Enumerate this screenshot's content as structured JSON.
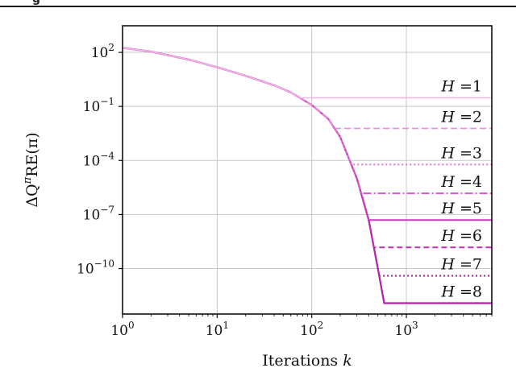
{
  "header_fragment": "g",
  "chart_data": {
    "type": "line",
    "xlabel": "Iterations k",
    "ylabel": "ΔQ^πRE(π)",
    "xscale": "log",
    "yscale": "log",
    "xlim": [
      1,
      8000
    ],
    "ylim": [
      3e-13,
      3000
    ],
    "x_ticks": [
      {
        "value": 1,
        "label": "10^0"
      },
      {
        "value": 10,
        "label": "10^1"
      },
      {
        "value": 100,
        "label": "10^2"
      },
      {
        "value": 1000,
        "label": "10^3"
      }
    ],
    "y_ticks": [
      {
        "value": 100,
        "label": "10^2"
      },
      {
        "value": 0.1,
        "label": "10^-1"
      },
      {
        "value": 0.0001,
        "label": "10^-4"
      },
      {
        "value": 1e-07,
        "label": "10^-7"
      },
      {
        "value": 1e-10,
        "label": "10^-10"
      }
    ],
    "grid": true,
    "common_decay": [
      [
        1,
        180
      ],
      [
        2,
        110
      ],
      [
        5,
        40
      ],
      [
        10,
        15
      ],
      [
        20,
        5
      ],
      [
        40,
        1.5
      ],
      [
        60,
        0.6
      ],
      [
        100,
        0.12
      ],
      [
        150,
        0.02
      ],
      [
        200,
        0.002
      ],
      [
        300,
        1e-05
      ],
      [
        400,
        5e-08
      ],
      [
        500,
        1e-10
      ],
      [
        600,
        5e-13
      ]
    ],
    "series": [
      {
        "label": "H =1",
        "H": "H",
        "eq": "=1",
        "plateau": 0.3,
        "color": "#f0b4e6",
        "dash": "",
        "width": 1.6
      },
      {
        "label": "H =2",
        "H": "H",
        "eq": "=2",
        "plateau": 0.006,
        "color": "#e890dc",
        "dash": "8,4",
        "width": 1.8
      },
      {
        "label": "H =3",
        "H": "H",
        "eq": "=3",
        "plateau": 6e-05,
        "color": "#e07ad4",
        "dash": "2,3",
        "width": 2.2
      },
      {
        "label": "H =4",
        "H": "H",
        "eq": "=4",
        "plateau": 1.5e-06,
        "color": "#d45cc8",
        "dash": "10,3,2,3",
        "width": 2
      },
      {
        "label": "H =5",
        "H": "H",
        "eq": "=5",
        "plateau": 5e-08,
        "color": "#c83cbc",
        "dash": "",
        "width": 2
      },
      {
        "label": "H =6",
        "H": "H",
        "eq": "=6",
        "plateau": 1.5e-09,
        "color": "#c030b4",
        "dash": "7,4",
        "width": 2
      },
      {
        "label": "H =7",
        "H": "H",
        "eq": "=7",
        "plateau": 4e-11,
        "color": "#b828ac",
        "dash": "2,3",
        "width": 2.2
      },
      {
        "label": "H =8",
        "H": "H",
        "eq": "=8",
        "plateau": 1.2e-12,
        "color": "#b020a8",
        "dash": "",
        "width": 2.2
      }
    ]
  }
}
